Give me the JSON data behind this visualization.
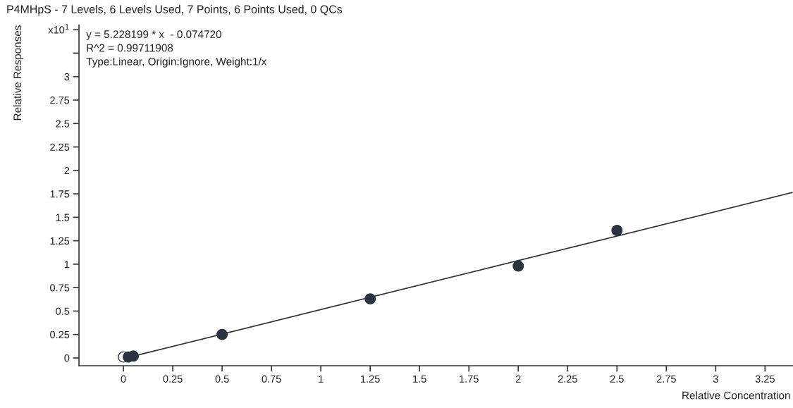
{
  "chart_data": {
    "type": "scatter",
    "title": "P4MHpS - 7 Levels, 6 Levels Used, 7 Points, 6 Points Used, 0 QCs",
    "xlabel": "Relative Concentration",
    "ylabel": "Relative Responses",
    "annotations": [
      "y = 5.228199 * x  - 0.074720",
      "R^2 = 0.99711908",
      "Type:Linear, Origin:Ignore, Weight:1/x"
    ],
    "series": [
      {
        "type": "line",
        "marker": "none",
        "color": "#333333",
        "x": [
          0,
          3.39
        ],
        "values": [
          -0.007,
          1.765
        ]
      },
      {
        "color": "#ffffff",
        "x": [
          0
        ],
        "values": [
          0.01
        ]
      },
      {
        "color": "#2b3340",
        "x": [
          0.025,
          0.05,
          0.5,
          1.25,
          2,
          2.5
        ],
        "values": [
          0.01,
          0.02,
          0.25,
          0.63,
          0.98,
          1.36
        ]
      }
    ],
    "marker": "circle",
    "xlim": [
      -0.225,
      3.39
    ],
    "ylim": [
      -0.083,
      3.55
    ],
    "xticks": [
      0,
      0.25,
      0.5,
      0.75,
      1,
      1.25,
      1.5,
      1.75,
      2,
      2.25,
      2.5,
      2.75,
      3,
      3.25
    ],
    "yticks": [
      0,
      0.25,
      0.5,
      0.75,
      1,
      1.25,
      1.5,
      1.75,
      2,
      2.25,
      2.5,
      2.75,
      3,
      {
        "value": 3.25,
        "label": null
      },
      {
        "value": 3.5,
        "label": "x10$^{1}$"
      }
    ],
    "grid": false,
    "legend": false
  }
}
